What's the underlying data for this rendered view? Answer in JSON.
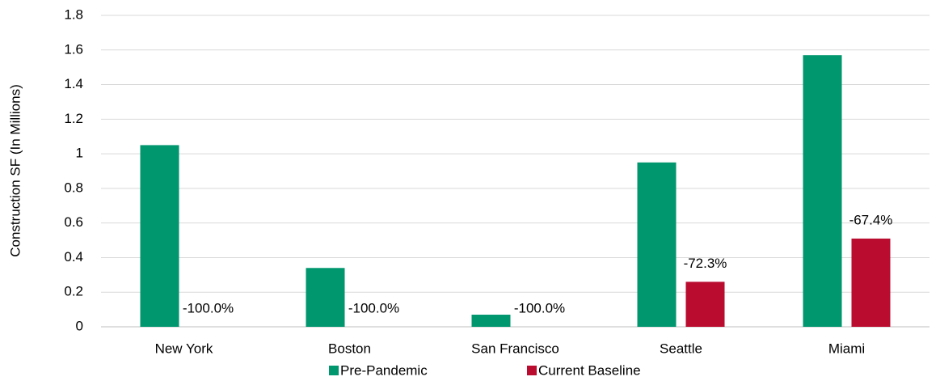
{
  "chart_data": {
    "type": "bar",
    "y_axis_label": "Construction SF (In Millions)",
    "categories": [
      "New York",
      "Boston",
      "San Francisco",
      "Seattle",
      "Miami"
    ],
    "series": [
      {
        "name": "Pre-Pandemic",
        "color": "#00966e",
        "values": [
          1.05,
          0.34,
          0.07,
          0.95,
          1.57
        ]
      },
      {
        "name": "Current Baseline",
        "color": "#ba0c2f",
        "values": [
          0,
          0,
          0,
          0.26,
          0.51
        ]
      }
    ],
    "change_labels": [
      "-100.0%",
      "-100.0%",
      "-100.0%",
      "-72.3%",
      "-67.4%"
    ],
    "ylim": [
      0,
      1.8
    ],
    "yticks": [
      0,
      0.2,
      0.4,
      0.6,
      0.8,
      1,
      1.2,
      1.4,
      1.6,
      1.8
    ],
    "grid": true,
    "legend": "bottom"
  }
}
